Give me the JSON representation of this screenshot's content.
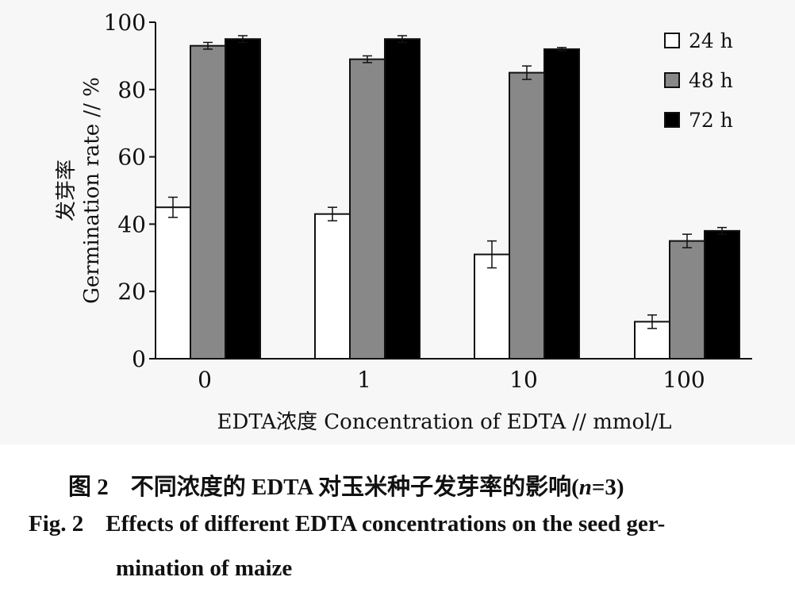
{
  "chart_data": {
    "type": "bar",
    "title": "",
    "xlabel": "EDTA浓度 Concentration of EDTA // mmol/L",
    "ylabel_cn": "发芽率",
    "ylabel_en": "Germination rate // %",
    "ylim": [
      0,
      100
    ],
    "yticks": [
      0,
      20,
      40,
      60,
      80,
      100
    ],
    "categories": [
      "0",
      "1",
      "10",
      "100"
    ],
    "series": [
      {
        "name": "24 h",
        "color": "#ffffff",
        "values": [
          45,
          43,
          31,
          11
        ],
        "errors": [
          3,
          2,
          4,
          2
        ]
      },
      {
        "name": "48 h",
        "color": "#888888",
        "values": [
          93,
          89,
          85,
          35
        ],
        "errors": [
          1,
          1,
          2,
          2
        ]
      },
      {
        "name": "72 h",
        "color": "#000000",
        "values": [
          95,
          95,
          92,
          38
        ],
        "errors": [
          1,
          1,
          0.5,
          1
        ]
      }
    ],
    "legend_position": "top-right",
    "grid": false
  },
  "caption": {
    "cn_fig": "图 2",
    "cn_text_prefix": "不同浓度的 EDTA 对玉米种子发芽率的影响(",
    "cn_n": "n",
    "cn_text_suffix": "=3)",
    "en_fig": "Fig. 2",
    "en_line1": "Effects of different EDTA concentrations on the seed ger-",
    "en_line2": "mination of maize"
  }
}
